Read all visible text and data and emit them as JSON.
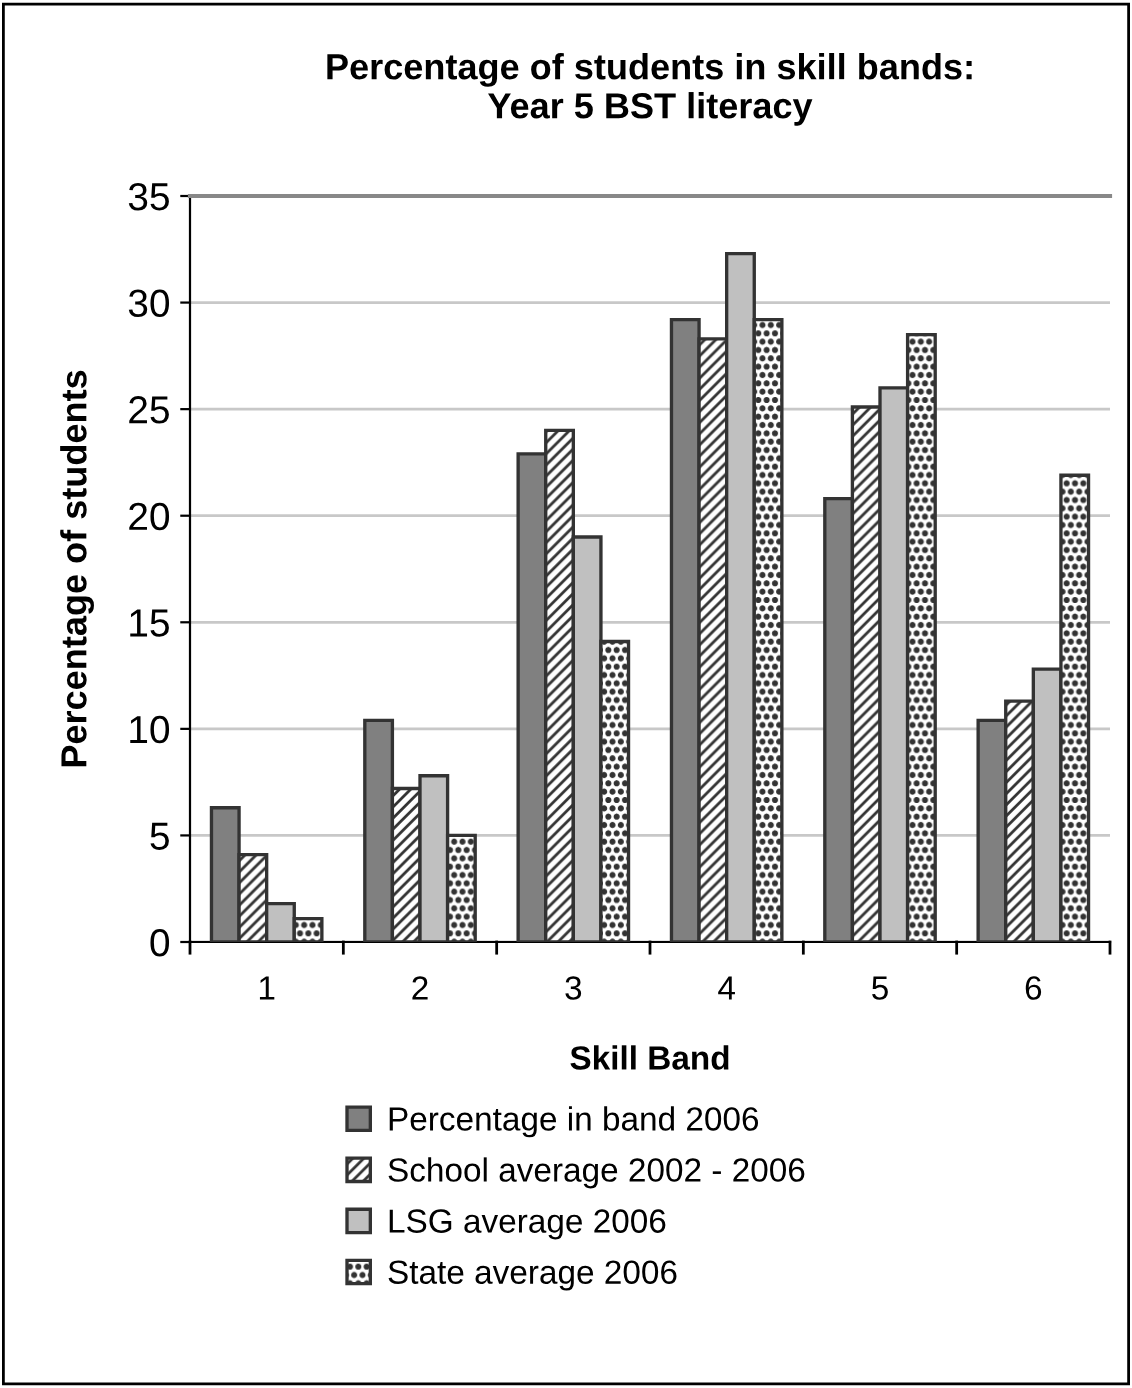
{
  "chart_data": {
    "type": "bar",
    "title": "Percentage of students in skill bands:\nYear 5 BST literacy",
    "xlabel": "Skill Band",
    "ylabel": "Percentage of students",
    "categories": [
      "1",
      "2",
      "3",
      "4",
      "5",
      "6"
    ],
    "series": [
      {
        "name": "Percentage in band 2006",
        "color": "#808080",
        "values": [
          6.3,
          10.4,
          22.9,
          29.2,
          20.8,
          10.4
        ]
      },
      {
        "name": "School average 2002 - 2006",
        "color": "#333333",
        "values": [
          4.1,
          7.2,
          24.0,
          28.3,
          25.1,
          11.3
        ]
      },
      {
        "name": "LSG average 2006",
        "color": "#c0c0c0",
        "values": [
          1.8,
          7.8,
          19.0,
          32.3,
          26.0,
          12.8
        ]
      },
      {
        "name": "State average 2006",
        "color": "#333333",
        "values": [
          1.1,
          5.0,
          14.1,
          29.2,
          28.5,
          21.9
        ]
      }
    ],
    "ylim": [
      0,
      35
    ],
    "yticks": [
      0,
      5,
      10,
      15,
      20,
      25,
      30,
      35
    ],
    "grid": "y",
    "legend": "bottom"
  }
}
